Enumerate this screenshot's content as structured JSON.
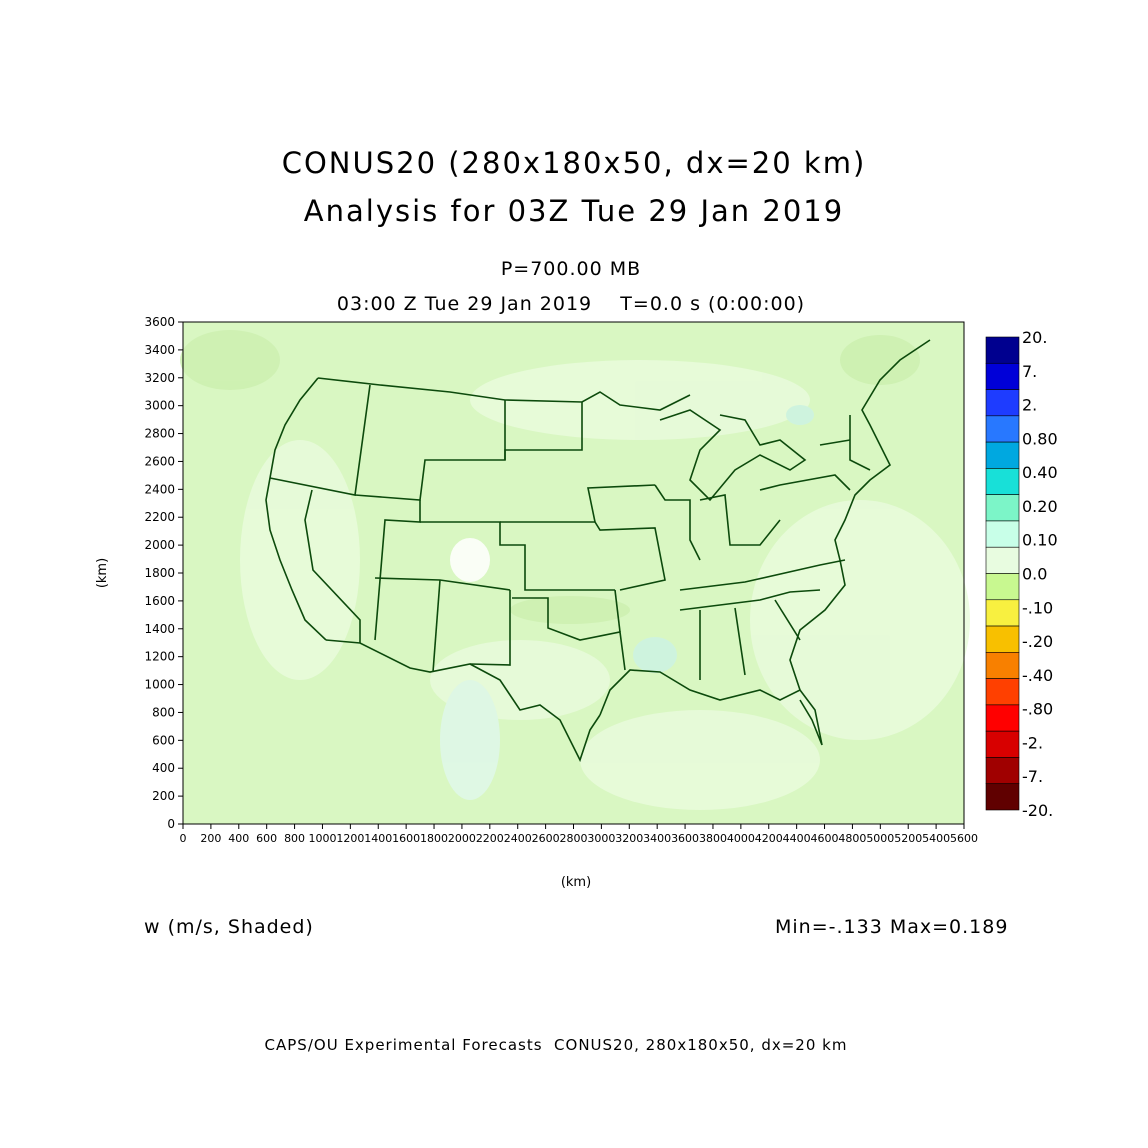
{
  "header": {
    "title_line1": "CONUS20 (280x180x50, dx=20 km)",
    "title_line2": "Analysis for 03Z Tue 29 Jan 2019",
    "level": "P=700.00 MB",
    "time": "03:00 Z Tue 29 Jan 2019    T=0.0 s (0:00:00)"
  },
  "map": {
    "x_axis_label": "(km)",
    "y_axis_label": "(km)",
    "x_ticks": [
      "0",
      "200",
      "400",
      "600",
      "800",
      "1000",
      "1200",
      "1400",
      "1600",
      "1800",
      "2000",
      "2200",
      "2400",
      "2600",
      "2800",
      "3000",
      "3200",
      "3400",
      "3600",
      "3800",
      "4000",
      "4200",
      "4400",
      "4600",
      "4800",
      "5000",
      "5200",
      "5400",
      "5600"
    ],
    "y_ticks": [
      "0",
      "200",
      "400",
      "600",
      "800",
      "1000",
      "1200",
      "1400",
      "1600",
      "1800",
      "2000",
      "2200",
      "2400",
      "2600",
      "2800",
      "3000",
      "3200",
      "3400",
      "3600"
    ],
    "x_range": [
      0,
      5600
    ],
    "y_range": [
      0,
      3600
    ],
    "boundary_color": "#0c4a0c",
    "field_color": "#d9f7c2"
  },
  "colorbar": {
    "labels": [
      "20.",
      "7.",
      "2.",
      "0.80",
      "0.40",
      "0.20",
      "0.10",
      "0.0",
      "-.10",
      "-.20",
      "-.40",
      "-.80",
      "-2.",
      "-7.",
      "-20."
    ],
    "colors": [
      "#00008f",
      "#0000d8",
      "#1e3cff",
      "#2878ff",
      "#00a8e0",
      "#18e0d8",
      "#7cf5c8",
      "#c8ffe8",
      "#e8fce0",
      "#c8f890",
      "#f8f040",
      "#f8c000",
      "#f88000",
      "#ff4000",
      "#ff0000",
      "#d80000",
      "#a00000",
      "#600000"
    ]
  },
  "footer": {
    "variable": "w (m/s, Shaded)",
    "minmax": "Min=-.133 Max=0.189",
    "credit": "CAPS/OU Experimental Forecasts  CONUS20, 280x180x50, dx=20 km"
  }
}
